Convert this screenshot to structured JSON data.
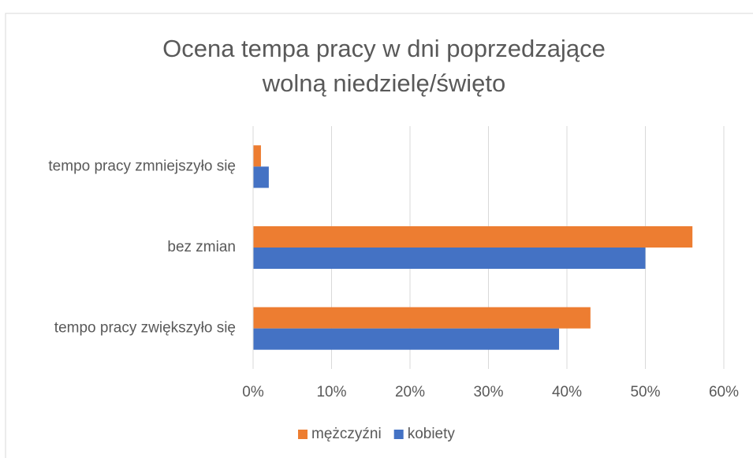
{
  "chart_data": {
    "type": "hbar",
    "title": "Ocena tempa pracy w dni poprzedzające wolną niedzielę/święto",
    "categories": [
      "tempo pracy zmniejszyło się",
      "bez zmian",
      "tempo pracy zwiększyło się"
    ],
    "series": [
      {
        "name": "mężczyźni",
        "color": "#ED7D31",
        "values": [
          1,
          56,
          43
        ]
      },
      {
        "name": "kobiety",
        "color": "#4472C4",
        "values": [
          2,
          50,
          39
        ]
      }
    ],
    "xlim": [
      0,
      60
    ],
    "xticks": [
      {
        "value": 0,
        "label": "0%"
      },
      {
        "value": 10,
        "label": "10%"
      },
      {
        "value": 20,
        "label": "20%"
      },
      {
        "value": 30,
        "label": "30%"
      },
      {
        "value": 40,
        "label": "40%"
      },
      {
        "value": 50,
        "label": "50%"
      },
      {
        "value": 60,
        "label": "60%"
      }
    ],
    "grid": true,
    "legend": "bottom"
  }
}
